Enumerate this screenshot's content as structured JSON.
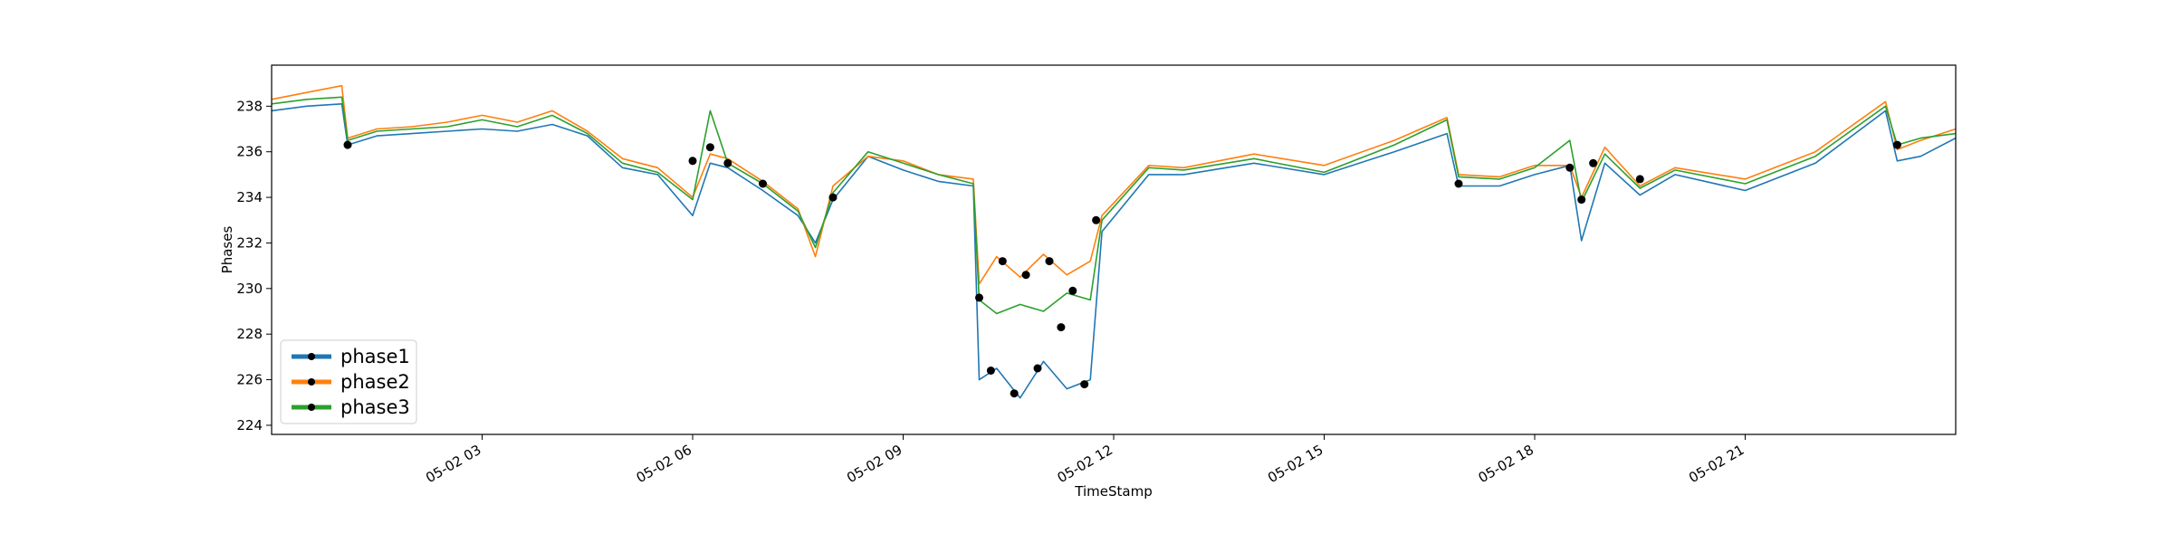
{
  "chart_data": {
    "type": "line",
    "xlabel": "TimeStamp",
    "ylabel": "Phases",
    "xlim": [
      "2024-05-02 00:00",
      "2024-05-02 24:00"
    ],
    "ylim": [
      223.6,
      239.8
    ],
    "y_ticks": [
      224,
      226,
      228,
      230,
      232,
      234,
      236,
      238
    ],
    "x_ticks": [
      {
        "t": "2024-05-02 03:00",
        "label": "05-02 03"
      },
      {
        "t": "2024-05-02 06:00",
        "label": "05-02 06"
      },
      {
        "t": "2024-05-02 09:00",
        "label": "05-02 09"
      },
      {
        "t": "2024-05-02 12:00",
        "label": "05-02 12"
      },
      {
        "t": "2024-05-02 15:00",
        "label": "05-02 15"
      },
      {
        "t": "2024-05-02 18:00",
        "label": "05-02 18"
      },
      {
        "t": "2024-05-02 21:00",
        "label": "05-02 21"
      }
    ],
    "x_tick_rotation_deg": 30,
    "grid": false,
    "legend": {
      "position": "lower-left"
    },
    "x": [
      "00:00",
      "00:30",
      "01:00",
      "01:05",
      "01:30",
      "02:00",
      "02:30",
      "03:00",
      "03:30",
      "04:00",
      "04:30",
      "05:00",
      "05:30",
      "06:00",
      "06:15",
      "06:30",
      "07:00",
      "07:30",
      "07:45",
      "08:00",
      "08:30",
      "09:00",
      "09:30",
      "10:00",
      "10:05",
      "10:20",
      "10:40",
      "11:00",
      "11:20",
      "11:40",
      "11:50",
      "12:30",
      "13:00",
      "14:00",
      "15:00",
      "16:00",
      "16:45",
      "16:55",
      "17:30",
      "18:00",
      "18:30",
      "18:40",
      "19:00",
      "19:30",
      "20:00",
      "21:00",
      "22:00",
      "23:00",
      "23:10",
      "23:30",
      "24:00"
    ],
    "series": [
      {
        "name": "phase1",
        "color": "#1f77b4",
        "values": [
          237.8,
          238.0,
          238.1,
          236.3,
          236.7,
          236.8,
          236.9,
          237.0,
          236.9,
          237.2,
          236.7,
          235.3,
          235.0,
          233.2,
          235.5,
          235.3,
          234.3,
          233.2,
          232.0,
          233.9,
          235.8,
          235.2,
          234.7,
          234.5,
          226.0,
          226.5,
          225.2,
          226.8,
          225.6,
          226.0,
          232.5,
          235.0,
          235.0,
          235.5,
          235.0,
          236.0,
          236.8,
          234.5,
          234.5,
          235.0,
          235.4,
          232.1,
          235.5,
          234.1,
          235.0,
          234.3,
          235.5,
          237.8,
          235.6,
          235.8,
          236.6
        ]
      },
      {
        "name": "phase2",
        "color": "#ff7f0e",
        "values": [
          238.3,
          238.6,
          238.9,
          236.6,
          237.0,
          237.1,
          237.3,
          237.6,
          237.3,
          237.8,
          236.9,
          235.7,
          235.3,
          234.0,
          235.9,
          235.7,
          234.7,
          233.5,
          231.4,
          234.5,
          235.8,
          235.6,
          235.0,
          234.8,
          230.2,
          231.4,
          230.5,
          231.5,
          230.6,
          231.2,
          233.2,
          235.4,
          235.3,
          235.9,
          235.4,
          236.5,
          237.5,
          235.0,
          234.9,
          235.4,
          235.4,
          234.0,
          236.2,
          234.5,
          235.3,
          234.8,
          236.0,
          238.2,
          236.1,
          236.5,
          237.0
        ]
      },
      {
        "name": "phase3",
        "color": "#2ca02c",
        "values": [
          238.1,
          238.3,
          238.4,
          236.5,
          236.9,
          237.0,
          237.1,
          237.4,
          237.1,
          237.6,
          236.8,
          235.5,
          235.1,
          233.9,
          237.8,
          235.5,
          234.6,
          233.4,
          231.8,
          234.2,
          236.0,
          235.5,
          235.0,
          234.6,
          229.5,
          228.9,
          229.3,
          229.0,
          229.8,
          229.5,
          233.0,
          235.3,
          235.2,
          235.7,
          235.1,
          236.3,
          237.4,
          234.9,
          234.8,
          235.3,
          236.5,
          233.8,
          235.9,
          234.4,
          235.2,
          234.6,
          235.8,
          238.0,
          236.3,
          236.6,
          236.8
        ]
      }
    ],
    "markers": {
      "color": "#000000",
      "x": [
        "01:05",
        "06:00",
        "06:15",
        "06:30",
        "07:00",
        "08:00",
        "10:05",
        "10:15",
        "10:25",
        "10:35",
        "10:45",
        "10:55",
        "11:05",
        "11:15",
        "11:25",
        "11:35",
        "11:45",
        "16:55",
        "18:30",
        "18:40",
        "18:50",
        "19:30",
        "23:10"
      ],
      "y": [
        236.3,
        235.6,
        236.2,
        235.5,
        234.6,
        234.0,
        229.6,
        226.4,
        231.2,
        225.4,
        230.6,
        226.5,
        231.2,
        228.3,
        229.9,
        225.8,
        233.0,
        234.6,
        235.3,
        233.9,
        235.5,
        234.8,
        236.3
      ]
    }
  }
}
